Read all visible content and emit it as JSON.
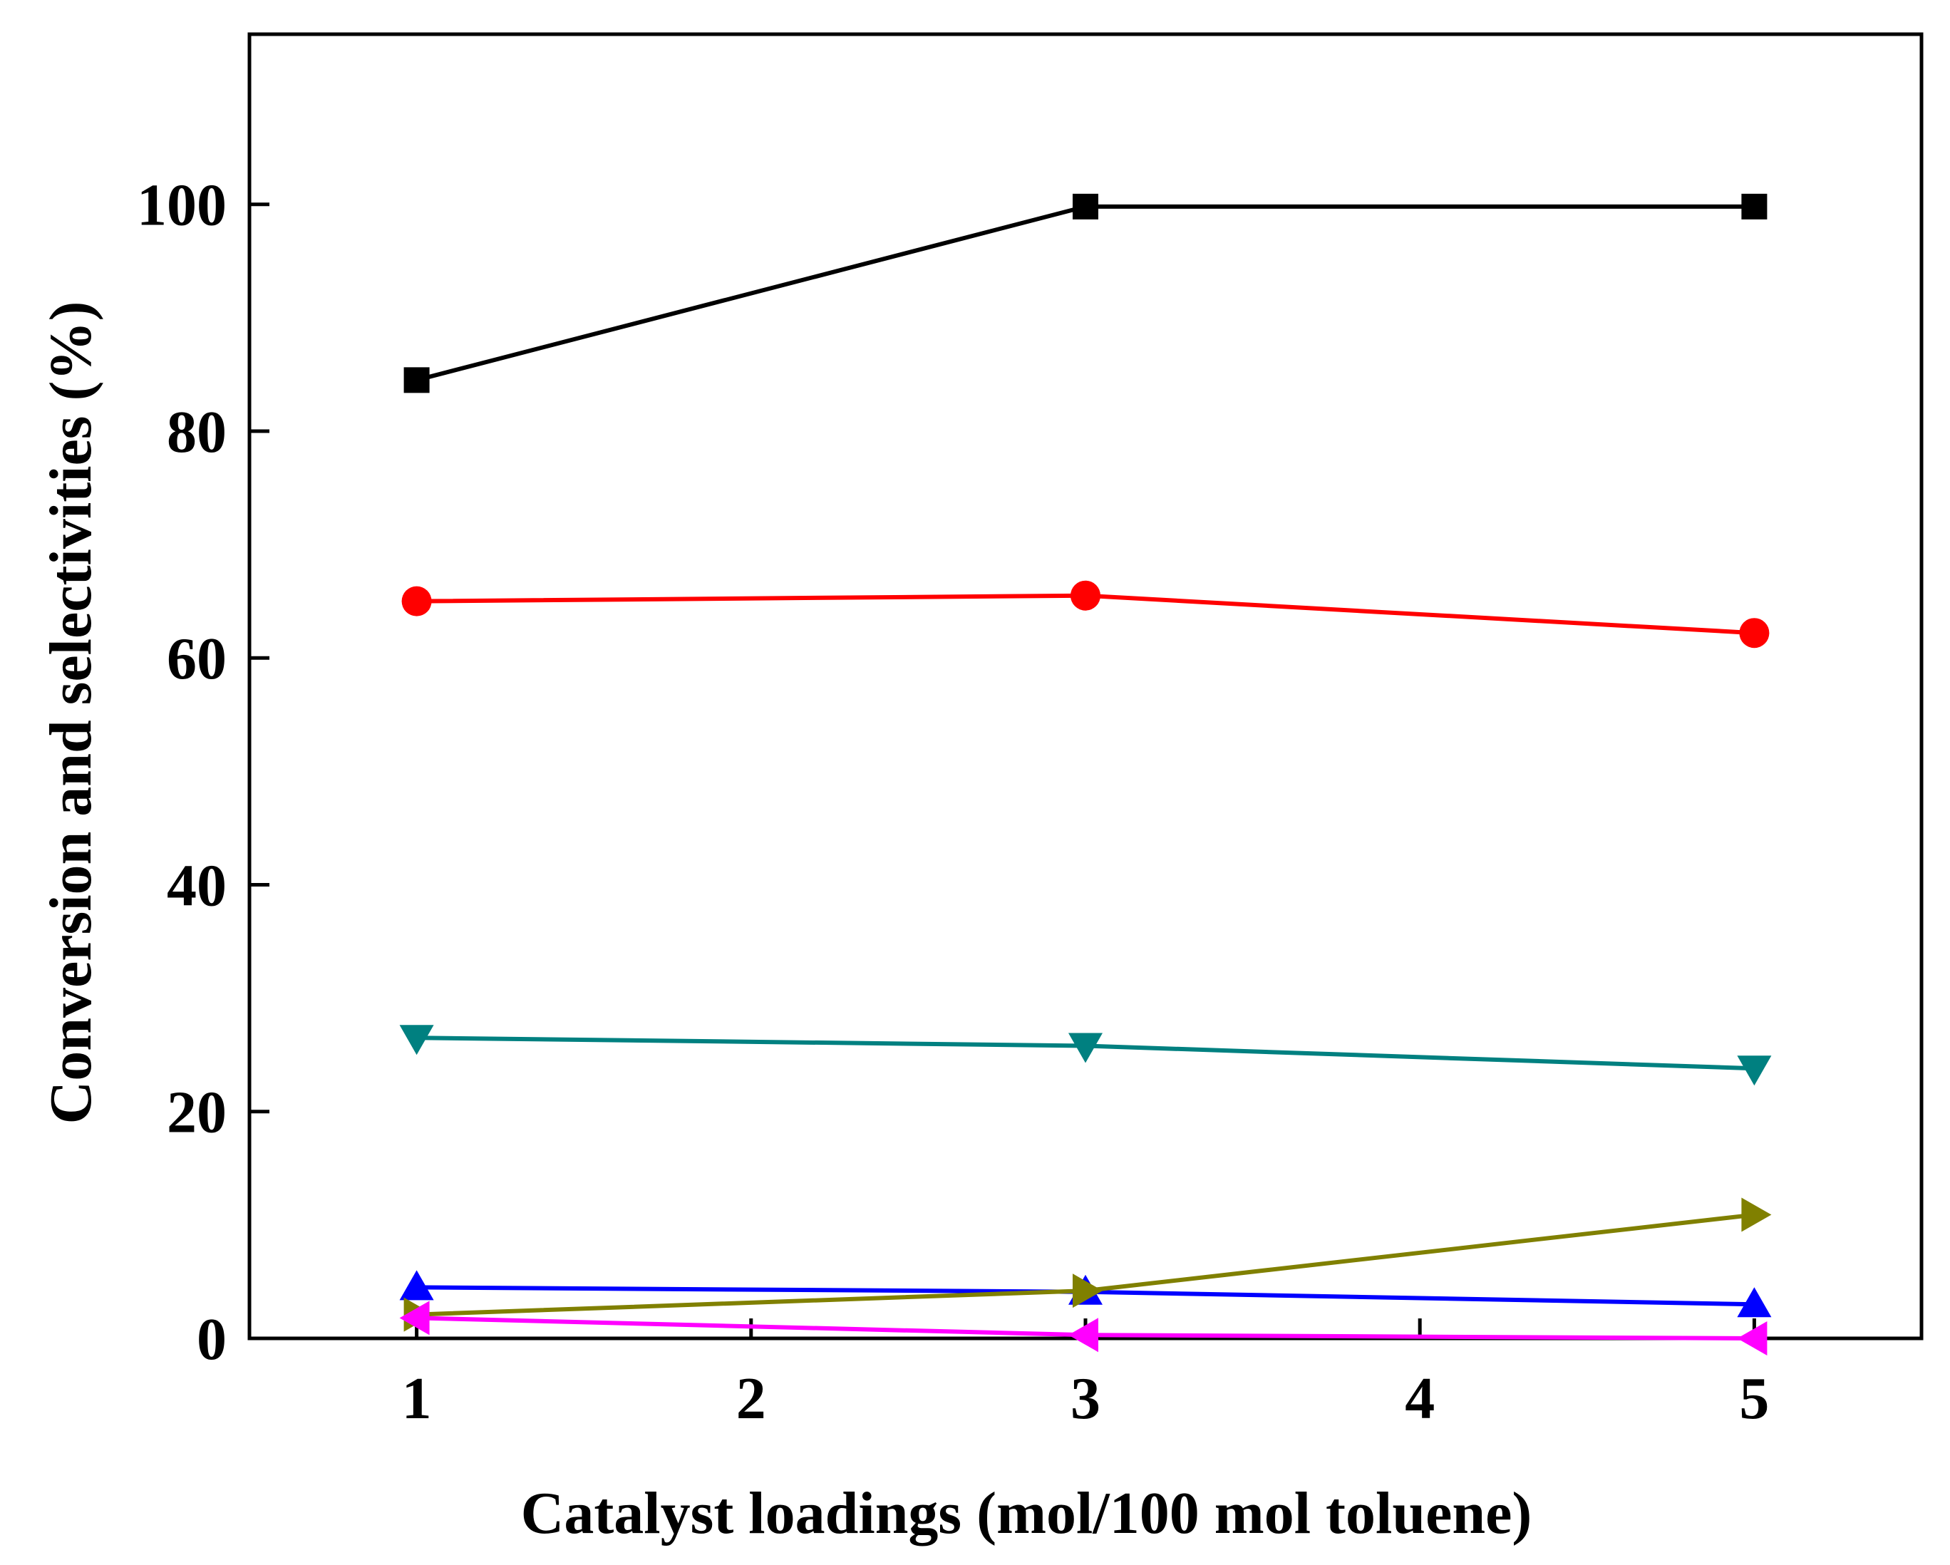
{
  "chart_data": {
    "type": "line",
    "title": "",
    "xlabel": "Catalyst loadings (mol/100 mol toluene)",
    "ylabel": "Conversion and selectivities (%)",
    "xlim": [
      0.5,
      5.5
    ],
    "ylim": [
      0,
      115
    ],
    "x_ticks": [
      1,
      2,
      3,
      4,
      5
    ],
    "x_tick_labels": [
      "1",
      "2",
      "3",
      "4",
      "5"
    ],
    "y_ticks": [
      0,
      20,
      40,
      60,
      80,
      100
    ],
    "y_tick_labels": [
      "0",
      "20",
      "40",
      "60",
      "80",
      "100"
    ],
    "grid": false,
    "legend": "none",
    "series": [
      {
        "name": "black-square",
        "color": "#000000",
        "marker": "square",
        "x": [
          1,
          3,
          5
        ],
        "values": [
          84.5,
          99.8,
          99.8
        ]
      },
      {
        "name": "red-circle",
        "color": "#ff0000",
        "marker": "circle",
        "x": [
          1,
          3,
          5
        ],
        "values": [
          65.0,
          65.5,
          62.2
        ]
      },
      {
        "name": "teal-triangle-down",
        "color": "#008080",
        "marker": "triangle-down",
        "x": [
          1,
          3,
          5
        ],
        "values": [
          26.5,
          25.8,
          23.8
        ]
      },
      {
        "name": "blue-triangle-up",
        "color": "#0000ff",
        "marker": "triangle-up",
        "x": [
          1,
          3,
          5
        ],
        "values": [
          4.5,
          4.1,
          3.0
        ]
      },
      {
        "name": "olive-triangle-right",
        "color": "#808000",
        "marker": "triangle-right",
        "x": [
          1,
          3,
          5
        ],
        "values": [
          2.1,
          4.2,
          10.9
        ]
      },
      {
        "name": "magenta-triangle-left",
        "color": "#ff00ff",
        "marker": "triangle-left",
        "x": [
          1,
          3,
          5
        ],
        "values": [
          1.8,
          0.3,
          0.0
        ]
      }
    ]
  }
}
